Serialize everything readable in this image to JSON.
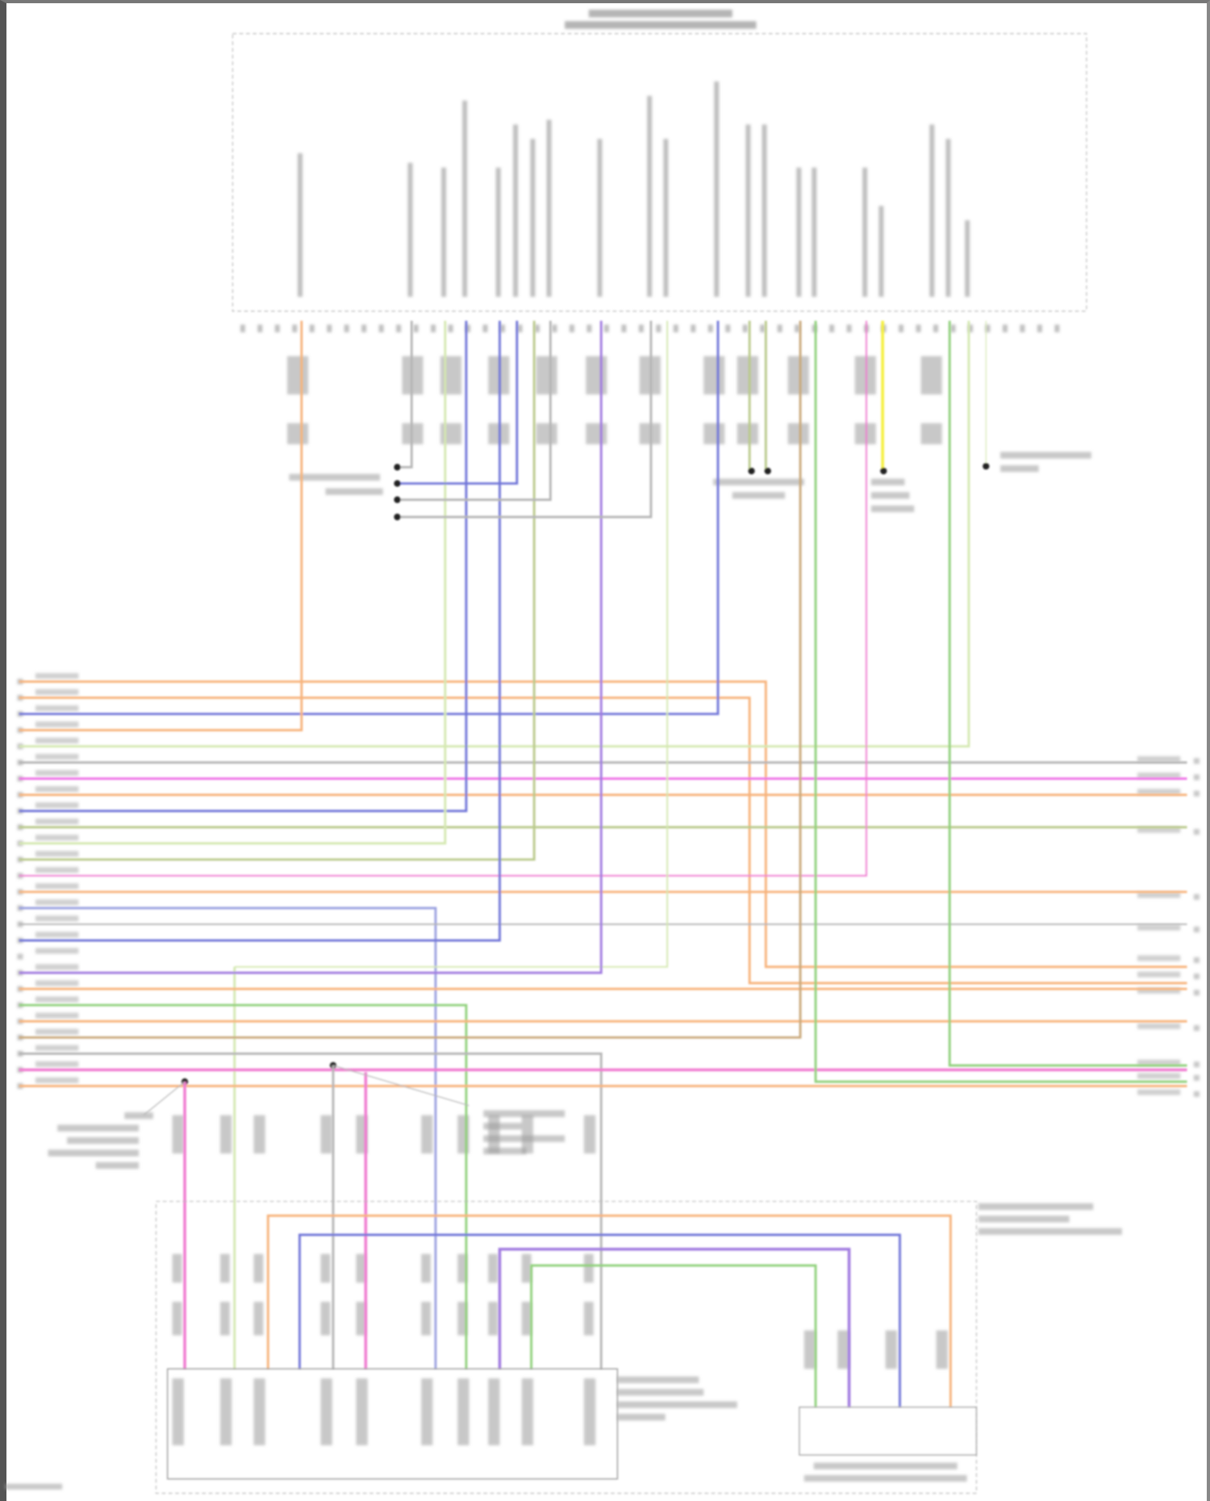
{
  "diagram": {
    "title_lines": [
      "",
      ""
    ],
    "wire_colors": {
      "orange": "#f7b27a",
      "blue": "#6f74d8",
      "lightblue": "#9aa0e0",
      "purple": "#a07ae0",
      "magenta": "#ee6fe6",
      "pink": "#f07bd0",
      "green": "#8fd07a",
      "olive": "#b9c98a",
      "lightgreen": "#d4e8b0",
      "gray": "#b5b5b5",
      "yellow": "#f5ef3a",
      "brown": "#c9a87a"
    },
    "top_module_pin_count": 48,
    "bottom_module_pin_count": 24,
    "left_connector_pin_count": 26,
    "right_connector_pin_count": 13
  }
}
